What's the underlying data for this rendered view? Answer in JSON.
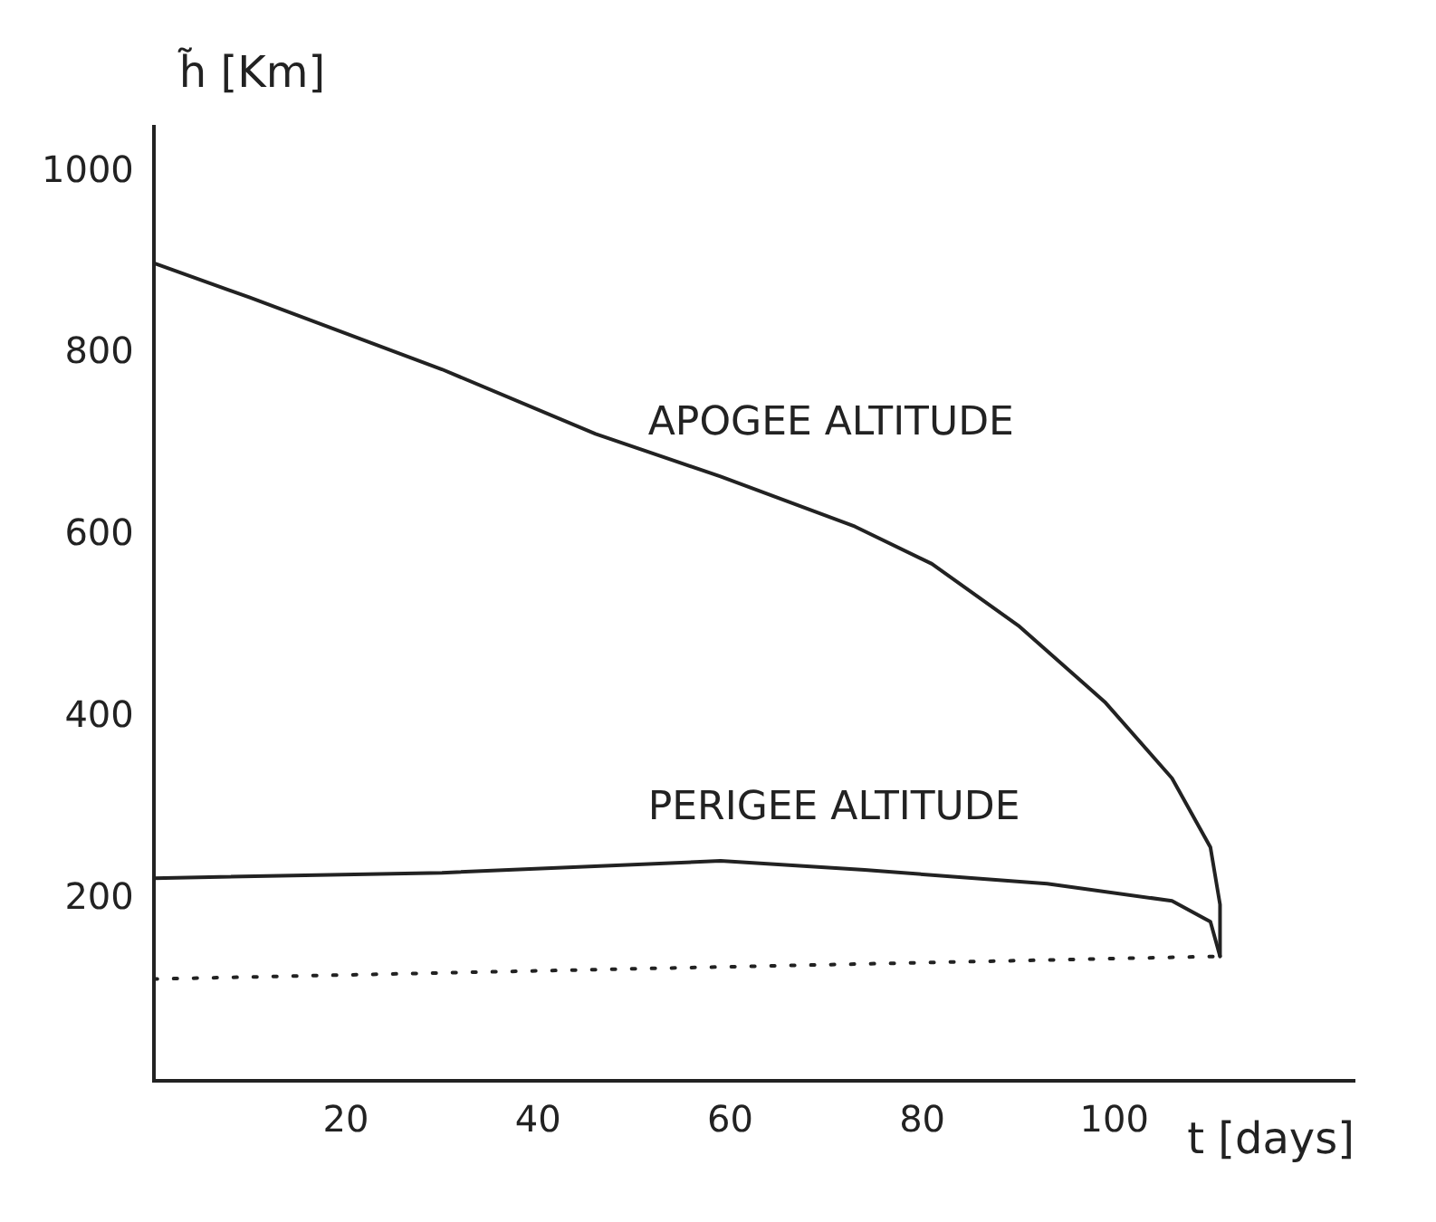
{
  "chart_data": {
    "type": "line",
    "xlabel": "t [days]",
    "ylabel": "h̃ [Km]",
    "xlim": [
      0,
      125
    ],
    "xticks": [
      20,
      40,
      60,
      80,
      100
    ],
    "ylim": [
      0,
      1050
    ],
    "yticks": [
      200,
      400,
      600,
      800,
      1000
    ],
    "grid": false,
    "legend": false,
    "marker": "none",
    "series": [
      {
        "name": "APOGEE ALTITUDE",
        "color": "#222222",
        "line_style": "solid",
        "x": [
          0,
          10,
          30,
          46,
          59,
          73,
          81,
          90,
          99,
          106,
          110,
          111,
          111
        ],
        "values": [
          900,
          862,
          783,
          712,
          665,
          610,
          569,
          501,
          417,
          333,
          257,
          194,
          137
        ]
      },
      {
        "name": "PERIGEE ALTITUDE",
        "color": "#222222",
        "line_style": "solid",
        "x": [
          0,
          30,
          59,
          74,
          93,
          106,
          110,
          111
        ],
        "values": [
          223,
          229,
          242,
          232,
          217,
          198,
          175,
          137
        ]
      },
      {
        "color": "#222222",
        "line_style": "dotted",
        "x": [
          0,
          111
        ],
        "values": [
          112,
          137
        ]
      }
    ]
  }
}
